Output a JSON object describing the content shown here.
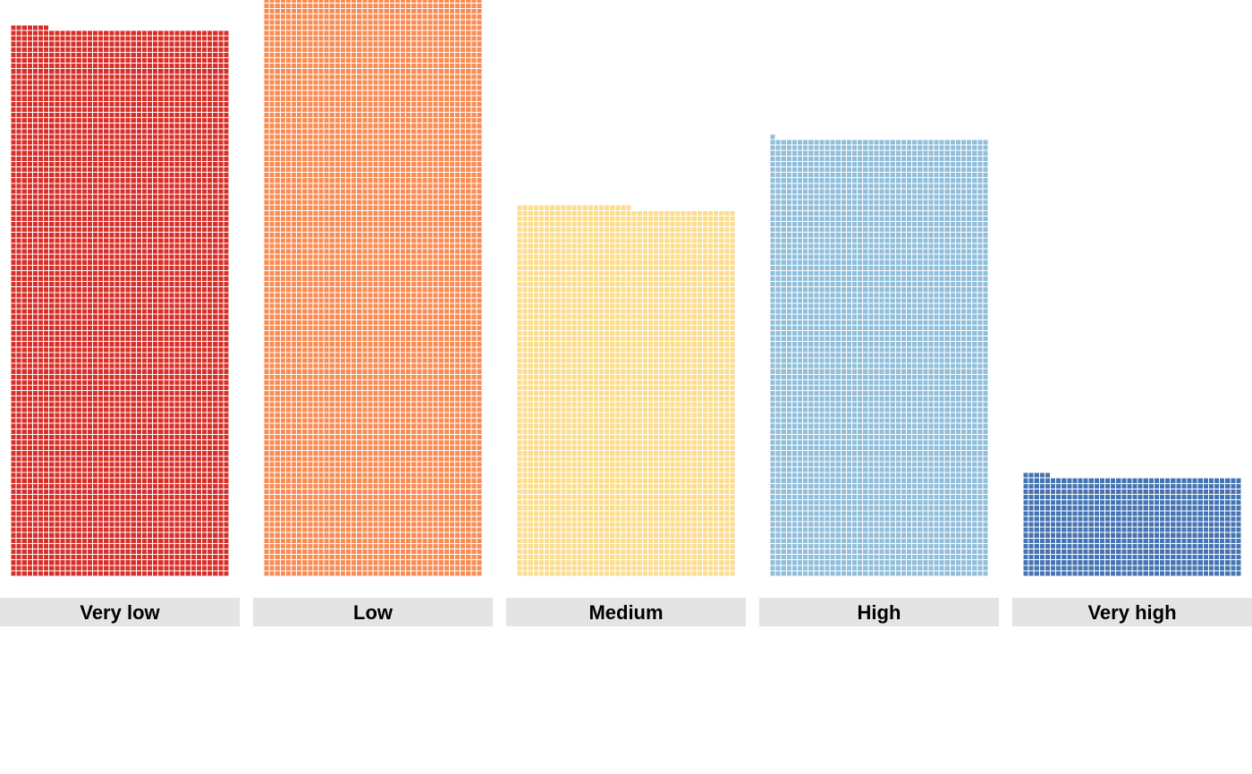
{
  "chart_data": {
    "type": "waffle",
    "title": "",
    "xlabel": "",
    "ylabel": "",
    "categories": [
      "Very low",
      "Low",
      "Medium",
      "High",
      "Very high"
    ],
    "values": [
      4007,
      4321,
      2701,
      3201,
      725
    ],
    "columns_per_panel": 40,
    "facet_layout": "one panel per category, labels in grey strips below",
    "grid": false,
    "legend": "none",
    "colors": {
      "Very low": "#d7302a",
      "Low": "#f88c55",
      "Medium": "#fbdd8d",
      "High": "#91bfdb",
      "Very high": "#4574b4"
    },
    "strip_color": "#e4e4e4",
    "strip_text_color": "#000000"
  }
}
